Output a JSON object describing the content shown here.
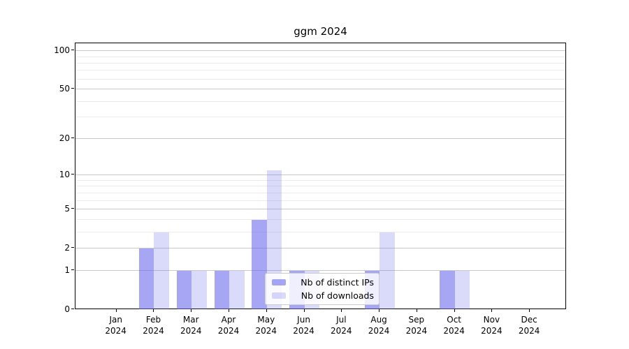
{
  "title": "ggm 2024",
  "chart_data": {
    "type": "bar",
    "title": "ggm 2024",
    "xlabel": "",
    "ylabel": "",
    "yscale": "log1p",
    "ylim": [
      0,
      115
    ],
    "yticks": [
      0,
      1,
      2,
      5,
      10,
      20,
      50,
      100
    ],
    "minor_yticks": [
      3,
      4,
      6,
      7,
      8,
      9,
      30,
      40,
      60,
      70,
      80,
      90
    ],
    "grid": true,
    "legend_position": "lower-center",
    "categories": [
      {
        "month": "Jan",
        "year": "2024"
      },
      {
        "month": "Feb",
        "year": "2024"
      },
      {
        "month": "Mar",
        "year": "2024"
      },
      {
        "month": "Apr",
        "year": "2024"
      },
      {
        "month": "May",
        "year": "2024"
      },
      {
        "month": "Jun",
        "year": "2024"
      },
      {
        "month": "Jul",
        "year": "2024"
      },
      {
        "month": "Aug",
        "year": "2024"
      },
      {
        "month": "Sep",
        "year": "2024"
      },
      {
        "month": "Oct",
        "year": "2024"
      },
      {
        "month": "Nov",
        "year": "2024"
      },
      {
        "month": "Dec",
        "year": "2024"
      }
    ],
    "series": [
      {
        "name": "Nb of distinct IPs",
        "color": "rgba(102,102,238,0.58)",
        "values": [
          0,
          2,
          1,
          1,
          4,
          1,
          0,
          1,
          0,
          1,
          0,
          0
        ]
      },
      {
        "name": "Nb of downloads",
        "color": "rgba(102,102,238,0.24)",
        "values": [
          0,
          3,
          1,
          1,
          11,
          1,
          0,
          3,
          0,
          1,
          0,
          0
        ]
      }
    ]
  }
}
